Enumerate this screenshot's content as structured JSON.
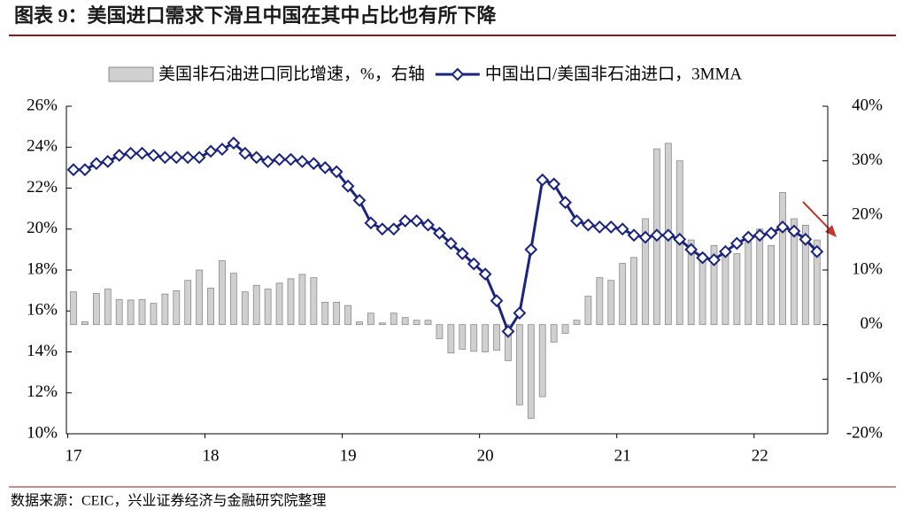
{
  "chart_data": {
    "type": "bar_line",
    "title": "图表 9：美国进口需求下滑且中国在其中占比也有所下降",
    "source": "数据来源：CEIC，兴业证券经济与金融研究院整理",
    "categories": [
      "17",
      null,
      null,
      null,
      null,
      null,
      null,
      null,
      null,
      null,
      null,
      null,
      "18",
      null,
      null,
      null,
      null,
      null,
      null,
      null,
      null,
      null,
      null,
      null,
      "19",
      null,
      null,
      null,
      null,
      null,
      null,
      null,
      null,
      null,
      null,
      null,
      "20",
      null,
      null,
      null,
      null,
      null,
      null,
      null,
      null,
      null,
      null,
      null,
      "21",
      null,
      null,
      null,
      null,
      null,
      null,
      null,
      null,
      null,
      null,
      null,
      "22",
      null,
      null,
      null,
      null,
      null
    ],
    "series": [
      {
        "name": "美国非石油进口同比增速，%，右轴",
        "type": "bar",
        "axis": "y2",
        "color": "#d0d0d0",
        "values": [
          6.0,
          0.5,
          5.7,
          6.5,
          4.6,
          4.5,
          4.6,
          3.9,
          5.6,
          6.2,
          8.1,
          10.0,
          6.7,
          11.7,
          9.4,
          6.0,
          7.2,
          6.5,
          7.6,
          8.4,
          9.2,
          8.6,
          4.1,
          4.1,
          3.5,
          0.5,
          2.1,
          0.3,
          2.1,
          1.3,
          0.8,
          0.8,
          -2.6,
          -5.2,
          -4.5,
          -4.9,
          -5.0,
          -4.7,
          -6.6,
          -14.7,
          -17.2,
          -13.2,
          -3.2,
          -1.6,
          0.8,
          5.2,
          8.6,
          8.1,
          11.2,
          12.3,
          19.4,
          32.2,
          33.2,
          30.0,
          15.5,
          13.0,
          14.5,
          13.6,
          13.0,
          15.2,
          17.5,
          14.5,
          24.2,
          19.4,
          18.2,
          15.5
        ]
      },
      {
        "name": "中国出口/美国非石油进口，3MMA",
        "type": "line",
        "axis": "y",
        "color": "#1a237e",
        "values": [
          22.9,
          22.9,
          23.2,
          23.3,
          23.6,
          23.7,
          23.7,
          23.6,
          23.5,
          23.5,
          23.5,
          23.5,
          23.8,
          23.9,
          24.2,
          23.7,
          23.5,
          23.3,
          23.4,
          23.4,
          23.3,
          23.2,
          23.0,
          22.8,
          22.1,
          21.4,
          20.3,
          20.0,
          20.0,
          20.4,
          20.4,
          20.2,
          19.8,
          19.3,
          18.8,
          18.3,
          17.8,
          16.5,
          15.0,
          15.9,
          19.0,
          22.4,
          22.2,
          21.3,
          20.4,
          20.2,
          20.1,
          20.1,
          20.0,
          19.7,
          19.6,
          19.7,
          19.7,
          19.5,
          19.0,
          18.6,
          18.5,
          18.9,
          19.3,
          19.6,
          19.7,
          19.8,
          20.1,
          19.9,
          19.5,
          18.9
        ]
      }
    ],
    "ylim": [
      10,
      26
    ],
    "yticks": [
      {
        "value": 10,
        "label": "10%"
      },
      {
        "value": 12,
        "label": "12%"
      },
      {
        "value": 14,
        "label": "14%"
      },
      {
        "value": 16,
        "label": "16%"
      },
      {
        "value": 18,
        "label": "18%"
      },
      {
        "value": 20,
        "label": "20%"
      },
      {
        "value": 22,
        "label": "22%"
      },
      {
        "value": 24,
        "label": "24%"
      },
      {
        "value": 26,
        "label": "26%"
      }
    ],
    "y2lim": [
      -20,
      40
    ],
    "y2ticks": [
      {
        "value": -20,
        "label": "-20%"
      },
      {
        "value": -10,
        "label": "-10%"
      },
      {
        "value": 0,
        "label": "0%"
      },
      {
        "value": 10,
        "label": "10%"
      },
      {
        "value": 20,
        "label": "20%"
      },
      {
        "value": 30,
        "label": "30%"
      },
      {
        "value": 40,
        "label": "40%"
      }
    ],
    "grid": false
  }
}
